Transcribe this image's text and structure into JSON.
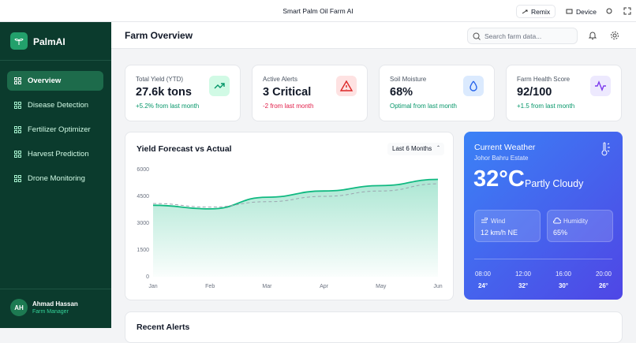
{
  "top_bar": {
    "title": "Smart Palm Oil Farm AI",
    "buttons": [
      "Remix",
      "Device"
    ]
  },
  "sidebar": {
    "brand": "PalmAI",
    "nav": [
      "Overview",
      "Disease Detection",
      "Fertilizer Optimizer",
      "Harvest Prediction",
      "Drone Monitoring"
    ],
    "active": 0,
    "user": {
      "initials": "AH",
      "name": "Ahmad Hassan",
      "role": "Farm Manager"
    }
  },
  "header": {
    "title": "Farm Overview",
    "search_placeholder": "Search farm data..."
  },
  "stats": [
    {
      "label": "Total Yield (YTD)",
      "value": "27.6k tons",
      "change": "+5.2% from last month"
    },
    {
      "label": "Active Alerts",
      "value": "3 Critical",
      "change": "-2 from last month"
    },
    {
      "label": "Soil Moisture",
      "value": "68%",
      "change": "Optimal from last month"
    },
    {
      "label": "Farm Health Score",
      "value": "92/100",
      "change": "+1.5 from last month"
    }
  ],
  "chart_data": {
    "type": "line",
    "title": "Yield Forecast vs Actual",
    "range_select": "Last 6 Months",
    "categories": [
      "Jan",
      "Feb",
      "Mar",
      "Apr",
      "May",
      "Jun"
    ],
    "series": [
      {
        "color": "#10b981",
        "values": [
          4000,
          3800,
          4450,
          4800,
          5100,
          5450
        ],
        "area": true
      },
      {
        "color": "#9ca3af",
        "values": [
          4100,
          3900,
          4200,
          4500,
          4800,
          5200
        ],
        "dashed": true
      }
    ],
    "ylim": [
      0,
      6000
    ],
    "yticks": [
      0,
      1500,
      3000,
      4500,
      6000
    ],
    "grid": false
  },
  "weather": {
    "title": "Current Weather",
    "location": "Johor Bahru Estate",
    "temperature": "32°C",
    "condition": "Partly Cloudy",
    "wind": {
      "label": "Wind",
      "value": "12 km/h NE"
    },
    "humidity": {
      "label": "Humidity",
      "value": "65%"
    },
    "forecast": [
      {
        "time": "08:00",
        "temp": "24°"
      },
      {
        "time": "12:00",
        "temp": "32°"
      },
      {
        "time": "16:00",
        "temp": "30°"
      },
      {
        "time": "20:00",
        "temp": "26°"
      }
    ]
  },
  "alerts": {
    "title": "Recent Alerts"
  }
}
